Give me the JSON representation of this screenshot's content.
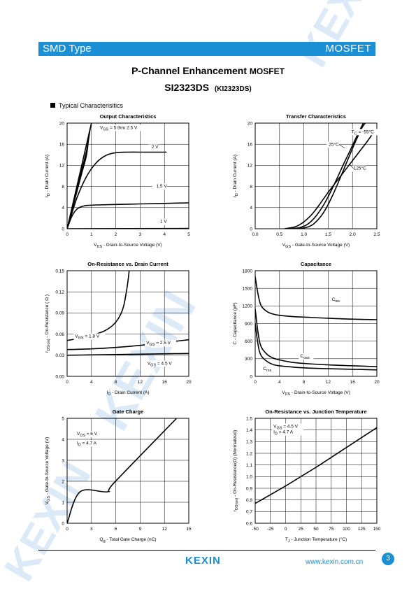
{
  "header": {
    "left": "SMD Type",
    "right": "MOSFET",
    "title_main": "P-Channel Enhancement ",
    "title_suffix": "MOSFET",
    "part": "SI2323DS",
    "part_alt": "(KI2323DS)",
    "section": "Typical  Characterisitics"
  },
  "footer": {
    "logo": "KEXIN",
    "url": "www.kexin.com.cn",
    "page": "3"
  },
  "watermark": {
    "text": "KEXIN"
  },
  "colors": {
    "brand": "#1a8fd6"
  },
  "chart_data": [
    {
      "type": "line",
      "title": "Output Characteristics",
      "xlabel": "V_DS  -  Drain-to-Source Voltage (V)",
      "ylabel": "I_D  -  Drain Current (A)",
      "xlim": [
        0,
        5
      ],
      "ylim": [
        0,
        20
      ],
      "xticks": [
        0,
        1,
        2,
        3,
        4,
        5
      ],
      "yticks": [
        0,
        4,
        8,
        12,
        16,
        20
      ],
      "grid": true,
      "series": [
        {
          "name": "V_GS = 5 thru 2.5 V",
          "x": [
            0,
            0.2,
            0.4,
            0.6,
            0.8,
            1.0
          ],
          "y": [
            0,
            4,
            8,
            12,
            16,
            20
          ]
        },
        {
          "name": "",
          "x": [
            0,
            0.2,
            0.4,
            0.6,
            0.8,
            0.95
          ],
          "y": [
            0,
            3.7,
            7.4,
            11.1,
            14.8,
            19
          ]
        },
        {
          "name": "",
          "x": [
            0,
            0.2,
            0.4,
            0.6,
            0.8,
            0.9
          ],
          "y": [
            0,
            3.5,
            7,
            10.5,
            14,
            18
          ]
        },
        {
          "name": "2 V",
          "x": [
            0,
            0.4,
            0.8,
            1.2,
            1.6,
            2.0,
            2.5,
            3.0,
            4.0,
            4.0
          ],
          "y": [
            0,
            5.8,
            9.9,
            12.5,
            13.9,
            14.4,
            14.5,
            14.5,
            14.5,
            14.5
          ]
        },
        {
          "name": "1.5 V",
          "x": [
            0,
            0.2,
            0.4,
            0.6,
            0.8,
            1.2,
            2.0,
            3.0,
            4.0,
            5.0
          ],
          "y": [
            0,
            2.4,
            3.7,
            4.2,
            4.4,
            4.5,
            4.6,
            4.7,
            4.8,
            4.9
          ]
        },
        {
          "name": "1 V",
          "x": [
            0,
            5
          ],
          "y": [
            0,
            0.05
          ]
        }
      ],
      "labels": [
        "V_GS = 5 thru 2.5 V",
        "2 V",
        "1.5 V",
        "1 V"
      ]
    },
    {
      "type": "line",
      "title": "Transfer Characteristics",
      "xlabel": "V_GS  -  Gate-to-Source Voltage (V)",
      "ylabel": "I_D  -  Drain Current (A)",
      "xlim": [
        0,
        2.5
      ],
      "ylim": [
        0,
        20
      ],
      "xticks": [
        "0.0",
        "0.5",
        "1.0",
        "1.5",
        "2.0",
        "2.5"
      ],
      "yticks": [
        0,
        4,
        8,
        12,
        16,
        20
      ],
      "grid": true,
      "series": [
        {
          "name": "T_C = -55°C",
          "x": [
            0.75,
            0.9,
            1.0,
            1.1,
            1.2,
            1.3,
            1.4,
            1.5,
            1.6,
            1.7,
            1.8,
            1.9,
            2.0,
            2.1,
            2.2,
            2.3
          ],
          "y": [
            0,
            0.05,
            0.15,
            0.4,
            0.9,
            1.8,
            3.0,
            4.6,
            6.5,
            8.6,
            10.8,
            13,
            15.2,
            17.3,
            19.2,
            20.5
          ]
        },
        {
          "name": "25°C",
          "x": [
            0.7,
            0.85,
            0.95,
            1.05,
            1.15,
            1.25,
            1.35,
            1.45,
            1.55,
            1.65,
            1.75,
            1.85,
            1.95,
            2.05,
            2.15,
            2.25
          ],
          "y": [
            0,
            0.1,
            0.3,
            0.7,
            1.4,
            2.4,
            3.7,
            5.2,
            7.0,
            8.9,
            10.9,
            12.9,
            14.8,
            16.8,
            18.7,
            20.5
          ]
        },
        {
          "name": "125°C",
          "x": [
            0.6,
            0.8,
            0.9,
            1.0,
            1.1,
            1.2,
            1.3,
            1.4,
            1.5,
            1.6,
            1.7,
            1.8,
            1.9,
            2.0,
            2.1,
            2.2,
            2.3,
            2.4
          ],
          "y": [
            0,
            0.3,
            0.7,
            1.3,
            2.1,
            3.1,
            4.3,
            5.6,
            6.9,
            8.1,
            9.3,
            10.5,
            11.7,
            12.9,
            14.1,
            15.3,
            16.5,
            17.8
          ]
        }
      ],
      "labels": [
        "T_C = -55°C",
        "25°C",
        "125°C"
      ]
    },
    {
      "type": "line",
      "title": "On-Resistance vs. Drain Current",
      "xlabel": "I_D  -  Drain Current (A)",
      "ylabel": "r_DS(on)  -  On-Resistance ( Ω )",
      "xlim": [
        0,
        20
      ],
      "ylim": [
        0,
        0.15
      ],
      "xticks": [
        0,
        4,
        8,
        12,
        16,
        20
      ],
      "yticks": [
        "0.00",
        "0.03",
        "0.06",
        "0.09",
        "0.12",
        "0.15"
      ],
      "grid": true,
      "series": [
        {
          "name": "V_GS = 1.8 V",
          "x": [
            0,
            2,
            4,
            6,
            7,
            8,
            8.8,
            9.3,
            9.7,
            10.0,
            10.2
          ],
          "y": [
            0.051,
            0.054,
            0.058,
            0.064,
            0.069,
            0.077,
            0.088,
            0.1,
            0.118,
            0.135,
            0.15
          ]
        },
        {
          "name": "V_GS = 2.5 V",
          "x": [
            0,
            4,
            8,
            12,
            16,
            20
          ],
          "y": [
            0.038,
            0.039,
            0.041,
            0.044,
            0.048,
            0.052
          ]
        },
        {
          "name": "V_GS = 4.5 V",
          "x": [
            0,
            4,
            8,
            12,
            16,
            20
          ],
          "y": [
            0.03,
            0.0305,
            0.031,
            0.0315,
            0.032,
            0.0325
          ]
        }
      ],
      "labels": [
        "V_GS = 1.8 V",
        "V_GS = 2.5 V",
        "V_GS = 4.5 V"
      ]
    },
    {
      "type": "line",
      "title": "Capacitance",
      "xlabel": "V_DS  -  Drain-to-Source Voltage (V)",
      "ylabel": "C  -  Capacitance (pF)",
      "xlim": [
        0,
        20
      ],
      "ylim": [
        0,
        1800
      ],
      "xticks": [
        0,
        4,
        8,
        12,
        16,
        20
      ],
      "yticks": [
        0,
        300,
        600,
        900,
        1200,
        1500,
        1800
      ],
      "grid": true,
      "series": [
        {
          "name": "C_iss",
          "x": [
            0,
            0.5,
            1,
            2,
            3,
            4,
            6,
            8,
            12,
            16,
            20
          ],
          "y": [
            1700,
            1380,
            1200,
            1100,
            1060,
            1040,
            1020,
            1010,
            990,
            975,
            965
          ]
        },
        {
          "name": "C_oss",
          "x": [
            0,
            0.5,
            1,
            2,
            3,
            4,
            6,
            8,
            12,
            16,
            20
          ],
          "y": [
            1150,
            720,
            500,
            370,
            310,
            280,
            240,
            220,
            195,
            180,
            165
          ]
        },
        {
          "name": "C_rss",
          "x": [
            0,
            0.5,
            1,
            2,
            3,
            4,
            6,
            8,
            12,
            16,
            20
          ],
          "y": [
            900,
            520,
            350,
            250,
            200,
            180,
            160,
            145,
            130,
            120,
            110
          ]
        }
      ],
      "labels": [
        "C_iss",
        "C_oss",
        "C_rss"
      ]
    },
    {
      "type": "line",
      "title": "Gate Charge",
      "xlabel": "Q_g  -  Total Gate Charge (nC)",
      "ylabel": "V_GS  -  Gate-to-Source Voltage (V)",
      "xlim": [
        0,
        15
      ],
      "ylim": [
        0,
        5
      ],
      "xticks": [
        0,
        3,
        6,
        9,
        12,
        15
      ],
      "yticks": [
        0,
        1,
        2,
        3,
        4,
        5
      ],
      "grid": true,
      "series": [
        {
          "name": "",
          "x": [
            0,
            1.6,
            5,
            5.8,
            13.5
          ],
          "y": [
            0,
            1.5,
            1.5,
            1.93,
            5
          ]
        }
      ],
      "labels": [
        "V_DS = 6 V",
        "I_D = 4.7  A"
      ]
    },
    {
      "type": "line",
      "title": "On-Resistance vs. Junction Temperature",
      "xlabel": "T_J  -  Junction Temperature (°C)",
      "ylabel": "r_DS(on)  -  On-Resistance(Ω) (Normalized)",
      "xlim": [
        -50,
        150
      ],
      "ylim": [
        0.6,
        1.5
      ],
      "xticks": [
        -50,
        -25,
        0,
        25,
        50,
        75,
        100,
        125,
        150
      ],
      "yticks": [
        "0.6",
        "0.7",
        "0.8",
        "0.9",
        "1.0",
        "1.1",
        "1.2",
        "1.3",
        "1.4",
        "1.5"
      ],
      "grid": true,
      "series": [
        {
          "name": "",
          "x": [
            -50,
            0,
            25,
            50,
            100,
            150
          ],
          "y": [
            0.77,
            0.92,
            1.0,
            1.08,
            1.25,
            1.42
          ]
        }
      ],
      "labels": [
        "V_GS = 4.5  V",
        "I_D = 4.7  A"
      ]
    }
  ]
}
